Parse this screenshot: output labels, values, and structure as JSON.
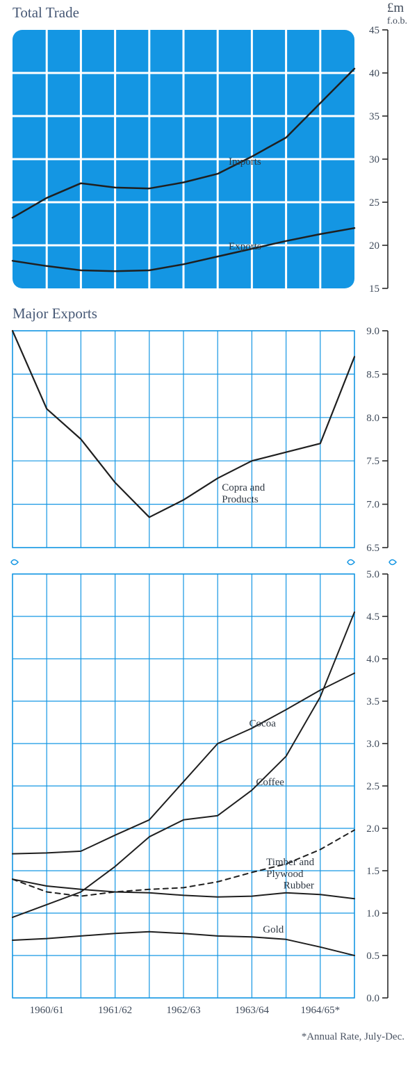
{
  "units": {
    "currency": "£m",
    "basis": "f.o.b."
  },
  "footnote": "*Annual Rate, July-Dec.",
  "x_axis": {
    "labels": [
      "1960/61",
      "1961/62",
      "1962/63",
      "1963/64",
      "1964/65*"
    ],
    "positions": [
      0,
      0.5,
      1,
      1.5,
      2,
      2.5,
      3,
      3.5,
      4,
      4.5,
      5
    ]
  },
  "chart1": {
    "title": "Total Trade",
    "type": "line",
    "bg_color": "#1496e3",
    "grid_color": "#ffffff",
    "line_color": "#1f1f1f",
    "line_width": 2.5,
    "ylim": [
      15,
      45
    ],
    "ytick_step": 5,
    "series": [
      {
        "name": "Imports",
        "label_at": 3.1,
        "x": [
          0,
          0.5,
          1,
          1.5,
          2,
          2.5,
          3,
          3.5,
          4,
          4.5,
          5
        ],
        "y": [
          23.2,
          25.5,
          27.2,
          26.7,
          26.6,
          27.3,
          28.3,
          30.3,
          32.5,
          36.5,
          40.5
        ]
      },
      {
        "name": "Exports",
        "label_at": 3.1,
        "x": [
          0,
          0.5,
          1,
          1.5,
          2,
          2.5,
          3,
          3.5,
          4,
          4.5,
          5
        ],
        "y": [
          18.2,
          17.6,
          17.1,
          17.0,
          17.1,
          17.8,
          18.7,
          19.6,
          20.5,
          21.3,
          22.0
        ]
      }
    ]
  },
  "chart2": {
    "title": "Major Exports",
    "type": "line",
    "bg_color": "#ffffff",
    "grid_color": "#1496e3",
    "border_color": "#1496e3",
    "line_color": "#1f1f1f",
    "line_width": 2.2,
    "ylim": [
      6.5,
      9.0
    ],
    "ytick_step": 0.5,
    "series": [
      {
        "name": "Copra and Products",
        "label_at": 3.0,
        "label_lines": 2,
        "x": [
          0,
          0.5,
          1,
          1.5,
          2,
          2.5,
          3,
          3.5,
          4,
          4.5,
          5
        ],
        "y": [
          9.0,
          8.1,
          7.75,
          7.25,
          6.85,
          7.05,
          7.3,
          7.5,
          7.6,
          7.7,
          8.7
        ]
      }
    ]
  },
  "chart3": {
    "type": "line",
    "bg_color": "#ffffff",
    "grid_color": "#1496e3",
    "border_color": "#1496e3",
    "line_color": "#1f1f1f",
    "line_width": 2.0,
    "ylim": [
      0,
      5.0
    ],
    "ytick_step": 0.5,
    "series": [
      {
        "name": "Cocoa",
        "label_at": 3.4,
        "dash": null,
        "x": [
          0,
          0.5,
          1,
          1.5,
          2,
          2.5,
          3,
          3.5,
          4,
          4.5,
          5
        ],
        "y": [
          1.7,
          1.71,
          1.73,
          1.92,
          2.1,
          2.55,
          3.0,
          3.18,
          3.4,
          3.63,
          3.83
        ]
      },
      {
        "name": "Coffee",
        "label_at": 3.5,
        "dash": null,
        "x": [
          0,
          0.5,
          1,
          1.5,
          2,
          2.5,
          3,
          3.5,
          4,
          4.5,
          5
        ],
        "y": [
          0.95,
          1.1,
          1.25,
          1.55,
          1.9,
          2.1,
          2.15,
          2.45,
          2.85,
          3.55,
          4.55
        ]
      },
      {
        "name": "Timber and Plywood",
        "label_at": 3.65,
        "label_lines": 2,
        "dash": "7 6",
        "x": [
          0,
          0.5,
          1,
          1.5,
          2,
          2.5,
          3,
          3.5,
          4,
          4.5,
          5
        ],
        "y": [
          1.4,
          1.25,
          1.2,
          1.25,
          1.28,
          1.3,
          1.37,
          1.48,
          1.58,
          1.75,
          1.98
        ]
      },
      {
        "name": "Rubber",
        "label_at": 3.9,
        "dash": null,
        "x": [
          0,
          0.5,
          1,
          1.5,
          2,
          2.5,
          3,
          3.5,
          4,
          4.5,
          5
        ],
        "y": [
          1.4,
          1.32,
          1.28,
          1.25,
          1.24,
          1.21,
          1.19,
          1.2,
          1.24,
          1.22,
          1.17
        ]
      },
      {
        "name": "Gold",
        "label_at": 3.6,
        "dash": null,
        "x": [
          0,
          0.5,
          1,
          1.5,
          2,
          2.5,
          3,
          3.5,
          4,
          4.5,
          5
        ],
        "y": [
          0.68,
          0.7,
          0.73,
          0.76,
          0.78,
          0.76,
          0.73,
          0.72,
          0.69,
          0.6,
          0.5
        ]
      }
    ]
  },
  "colors": {
    "title_text": "#465875",
    "axis_text": "#3f4a5a",
    "label_text": "#2e3742"
  },
  "fonts": {
    "title_size": 21,
    "axis_size": 15,
    "label_size": 15
  }
}
